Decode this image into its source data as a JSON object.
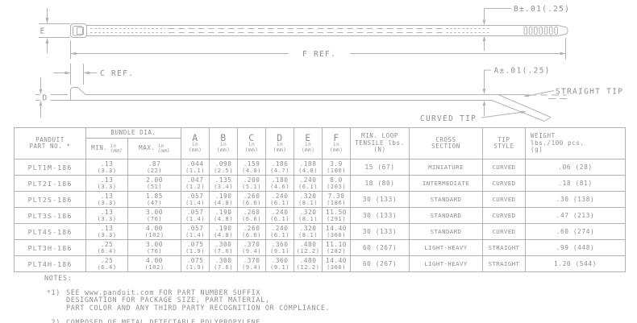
{
  "colors": {
    "line": "#b2b2b2",
    "text": "#8e8e8e"
  },
  "drawing": {
    "dim_b_label": "B±.01(.25)",
    "dim_a_label": "A±.01(.25)",
    "dim_e_label": "E",
    "dim_d_label": "D",
    "f_ref_label": "F REF.",
    "c_ref_label": "C REF.",
    "straight_tip_label": "STRAIGHT TIP",
    "curved_tip_label": "CURVED TIP"
  },
  "table": {
    "headers": {
      "part_line1": "PANDUIT",
      "part_line2": "PART NO. *",
      "bundle": "BUNDLE DIA.",
      "min": "MIN.",
      "max": "MAX.",
      "unit_in": "in",
      "unit_mm": "(mm)",
      "dims": [
        "A",
        "B",
        "C",
        "D",
        "E",
        "F"
      ],
      "tensile": [
        "MIN. LOOP",
        "TENSILE lbs.",
        "(N)"
      ],
      "cross": [
        "CROSS",
        "SECTION"
      ],
      "tip": [
        "TIP",
        "STYLE"
      ],
      "weight": [
        "WEIGHT",
        "lbs./100 pcs.",
        "(g)"
      ]
    },
    "rows": [
      {
        "part": "PLT1M-186",
        "bundle_min": [
          ".13",
          "(3.3)"
        ],
        "bundle_max": [
          ".87",
          "(22)"
        ],
        "a": [
          ".044",
          "(1.1)"
        ],
        "b": [
          ".098",
          "(2.5)"
        ],
        "c": [
          ".159",
          "(4.0)"
        ],
        "d": [
          ".186",
          "(4.7)"
        ],
        "e": [
          ".188",
          "(4.8)"
        ],
        "f": [
          "3.9",
          "(100)"
        ],
        "tensile": "15 (67)",
        "cross": "MINIATURE",
        "tip": "CURVED",
        "weight": ".06 (28)"
      },
      {
        "part": "PLT2I-186",
        "bundle_min": [
          ".13",
          "(3.3)"
        ],
        "bundle_max": [
          "2.00",
          "(51)"
        ],
        "a": [
          ".047",
          "(1.2)"
        ],
        "b": [
          ".135",
          "(3.4)"
        ],
        "c": [
          ".200",
          "(5.1)"
        ],
        "d": [
          ".180",
          "(4.6)"
        ],
        "e": [
          ".240",
          "(6.1)"
        ],
        "f": [
          "8.0",
          "(203)"
        ],
        "tensile": "18 (80)",
        "cross": "INTERMEDIATE",
        "tip": "CURVED",
        "weight": ".18 (81)"
      },
      {
        "part": "PLT2S-186",
        "bundle_min": [
          ".13",
          "(3.3)"
        ],
        "bundle_max": [
          "1.85",
          "(47)"
        ],
        "a": [
          ".057",
          "(1.4)"
        ],
        "b": [
          ".190",
          "(4.8)"
        ],
        "c": [
          ".260",
          "(6.6)"
        ],
        "d": [
          ".240",
          "(6.1)"
        ],
        "e": [
          ".320",
          "(8.1)"
        ],
        "f": [
          "7.30",
          "(186)"
        ],
        "tensile": "30 (133)",
        "cross": "STANDARD",
        "tip": "CURVED",
        "weight": ".30 (138)"
      },
      {
        "part": "PLT3S-186",
        "bundle_min": [
          ".13",
          "(3.3)"
        ],
        "bundle_max": [
          "3.00",
          "(76)"
        ],
        "a": [
          ".057",
          "(1.4)"
        ],
        "b": [
          ".190",
          "(4.8)"
        ],
        "c": [
          ".260",
          "(6.6)"
        ],
        "d": [
          ".240",
          "(6.1)"
        ],
        "e": [
          ".320",
          "(8.1)"
        ],
        "f": [
          "11.50",
          "(291)"
        ],
        "tensile": "30 (133)",
        "cross": "STANDARD",
        "tip": "CURVED",
        "weight": ".47 (213)"
      },
      {
        "part": "PLT4S-186",
        "bundle_min": [
          ".13",
          "(3.3)"
        ],
        "bundle_max": [
          "4.00",
          "(102)"
        ],
        "a": [
          ".057",
          "(1.4)"
        ],
        "b": [
          ".190",
          "(4.8)"
        ],
        "c": [
          ".260",
          "(6.6)"
        ],
        "d": [
          ".240",
          "(6.1)"
        ],
        "e": [
          ".320",
          "(8.1)"
        ],
        "f": [
          "14.40",
          "(366)"
        ],
        "tensile": "30 (133)",
        "cross": "STANDARD",
        "tip": "CURVED",
        "weight": ".60 (274)"
      },
      {
        "part": "PLT3H-186",
        "bundle_min": [
          ".25",
          "(6.4)"
        ],
        "bundle_max": [
          "3.00",
          "(76)"
        ],
        "a": [
          ".075",
          "(1.9)"
        ],
        "b": [
          ".300",
          "(7.6)"
        ],
        "c": [
          ".370",
          "(9.4)"
        ],
        "d": [
          ".360",
          "(9.1)"
        ],
        "e": [
          ".480",
          "(12.2)"
        ],
        "f": [
          "11.10",
          "(282)"
        ],
        "tensile": "60 (267)",
        "cross": "LIGHT-HEAVY",
        "tip": "STRAIGHT",
        "weight": ".99 (448)"
      },
      {
        "part": "PLT4H-186",
        "bundle_min": [
          ".25",
          "(6.4)"
        ],
        "bundle_max": [
          "4.00",
          "(102)"
        ],
        "a": [
          ".075",
          "(1.9)"
        ],
        "b": [
          ".300",
          "(7.6)"
        ],
        "c": [
          ".370",
          "(9.4)"
        ],
        "d": [
          ".360",
          "(9.1)"
        ],
        "e": [
          ".480",
          "(12.2)"
        ],
        "f": [
          "14.40",
          "(366)"
        ],
        "tensile": "60 (267)",
        "cross": "LIGHT-HEAVY",
        "tip": "STRAIGHT",
        "weight": "1.20 (544)"
      }
    ]
  },
  "notes": {
    "title": "NOTES:",
    "items": [
      {
        "marker": "*1)",
        "lines": [
          "SEE www.panduit.com FOR PART NUMBER SUFFIX",
          "DESIGNATION FOR PACKAGE SIZE, PART MATERIAL,",
          "PART COLOR AND ANY THIRD PARTY RECOGNITION OR COMPLIANCE."
        ]
      },
      {
        "marker": "2)",
        "lines": [
          "COMPOSED OF METAL DETECTABLE POLYPROPYLENE."
        ]
      }
    ]
  }
}
